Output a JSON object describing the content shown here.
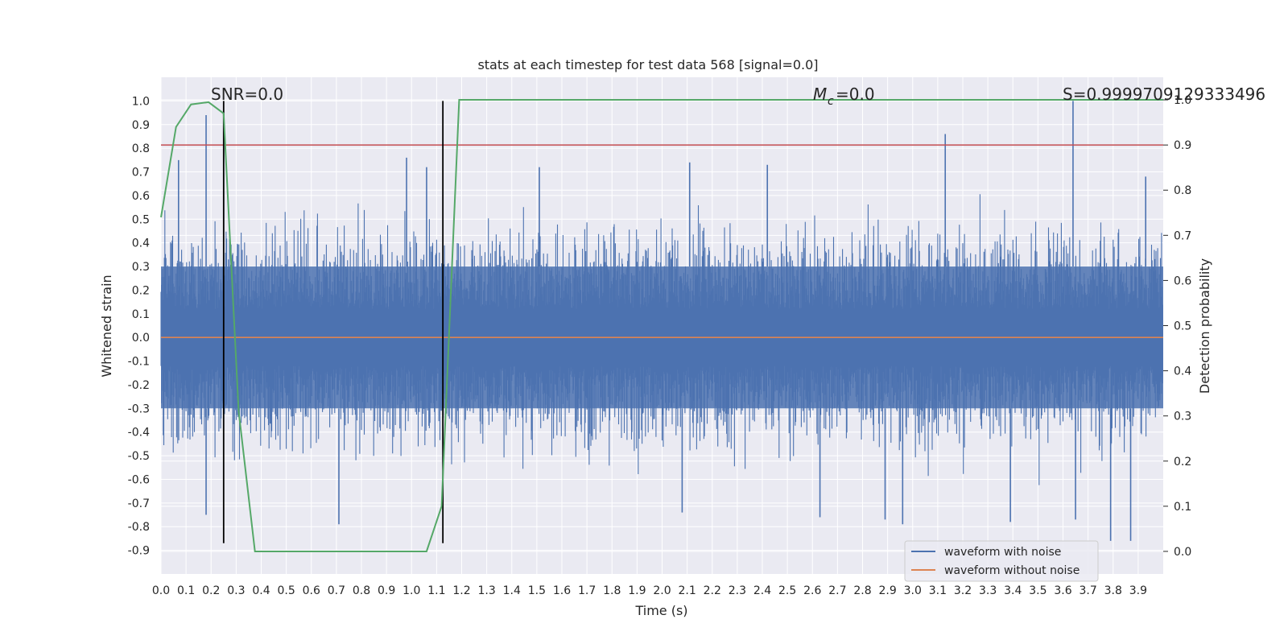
{
  "chart_data": {
    "type": "line",
    "title": "stats at each timestep for test data 568 [signal=0.0]",
    "xlabel": "Time (s)",
    "ylabel_left": "Whitened strain",
    "ylabel_right": "Detection probability",
    "xlim": [
      0.0,
      4.0
    ],
    "ylim_left": [
      -1.0,
      1.1
    ],
    "ylim_right": [
      -0.05,
      1.05
    ],
    "x_ticks": [
      "0.0",
      "0.1",
      "0.2",
      "0.3",
      "0.4",
      "0.5",
      "0.6",
      "0.7",
      "0.8",
      "0.9",
      "1.0",
      "1.1",
      "1.2",
      "1.3",
      "1.4",
      "1.5",
      "1.6",
      "1.7",
      "1.8",
      "1.9",
      "2.0",
      "2.1",
      "2.2",
      "2.3",
      "2.4",
      "2.5",
      "2.6",
      "2.7",
      "2.8",
      "2.9",
      "3.0",
      "3.1",
      "3.2",
      "3.3",
      "3.4",
      "3.5",
      "3.6",
      "3.7",
      "3.8",
      "3.9"
    ],
    "y_ticks_left": [
      "1.0",
      "0.9",
      "0.8",
      "0.7",
      "0.6",
      "0.5",
      "0.4",
      "0.3",
      "0.2",
      "0.1",
      "0.0",
      "-0.1",
      "-0.2",
      "-0.3",
      "-0.4",
      "-0.5",
      "-0.6",
      "-0.7",
      "-0.8",
      "-0.9"
    ],
    "y_ticks_right": [
      "1.0",
      "0.9",
      "0.8",
      "0.7",
      "0.6",
      "0.5",
      "0.4",
      "0.3",
      "0.2",
      "0.1",
      "0.0"
    ],
    "annotations": {
      "snr": "SNR=0.0",
      "mc": "=0.0",
      "mc_symbol": "M",
      "mc_sub": "c",
      "s": "S=0.9999709129333496"
    },
    "series": [
      {
        "name": "waveform with noise",
        "color": "#4c72b0",
        "axis": "left",
        "description": "whitened noisy strain, dense noise roughly within -0.9..0.95",
        "noise_band": [
          -0.3,
          0.3
        ],
        "peak_spikes": [
          {
            "x": 0.18,
            "y": 0.94
          },
          {
            "x": 0.07,
            "y": 0.75
          },
          {
            "x": 0.25,
            "y": 0.95
          },
          {
            "x": 0.98,
            "y": 0.76
          },
          {
            "x": 1.06,
            "y": 0.72
          },
          {
            "x": 1.51,
            "y": 0.72
          },
          {
            "x": 2.11,
            "y": 0.74
          },
          {
            "x": 2.42,
            "y": 0.73
          },
          {
            "x": 3.13,
            "y": 0.86
          },
          {
            "x": 3.64,
            "y": 1.0
          },
          {
            "x": 3.93,
            "y": 0.68
          }
        ],
        "trough_spikes": [
          {
            "x": 0.18,
            "y": -0.75
          },
          {
            "x": 0.71,
            "y": -0.79
          },
          {
            "x": 2.08,
            "y": -0.74
          },
          {
            "x": 2.63,
            "y": -0.76
          },
          {
            "x": 2.89,
            "y": -0.77
          },
          {
            "x": 2.96,
            "y": -0.79
          },
          {
            "x": 3.39,
            "y": -0.78
          },
          {
            "x": 3.65,
            "y": -0.77
          },
          {
            "x": 3.79,
            "y": -0.86
          },
          {
            "x": 3.87,
            "y": -0.86
          }
        ]
      },
      {
        "name": "waveform without noise",
        "color": "#dd8452",
        "axis": "left",
        "x": [
          0.0,
          4.0
        ],
        "y": [
          0.0,
          0.0
        ]
      },
      {
        "name": "detection probability",
        "color": "#55a868",
        "axis": "right",
        "x": [
          0.0,
          0.06,
          0.12,
          0.19,
          0.25,
          0.31,
          0.375,
          1.06,
          1.12,
          1.19,
          4.0
        ],
        "y": [
          0.74,
          0.94,
          0.99,
          0.995,
          0.97,
          0.31,
          0.0,
          0.0,
          0.1,
          1.0,
          1.0
        ]
      }
    ],
    "threshold": {
      "axis": "right",
      "value": 0.9,
      "color": "#c44e52"
    },
    "vertical_markers": [
      {
        "x": 0.25,
        "y_range": [
          -0.87,
          1.0
        ],
        "color": "#000000"
      },
      {
        "x": 1.125,
        "y_range": [
          -0.87,
          1.0
        ],
        "color": "#000000"
      }
    ],
    "legend": {
      "placement": "lower-right",
      "entries": [
        "waveform with noise",
        "waveform without noise"
      ]
    }
  }
}
